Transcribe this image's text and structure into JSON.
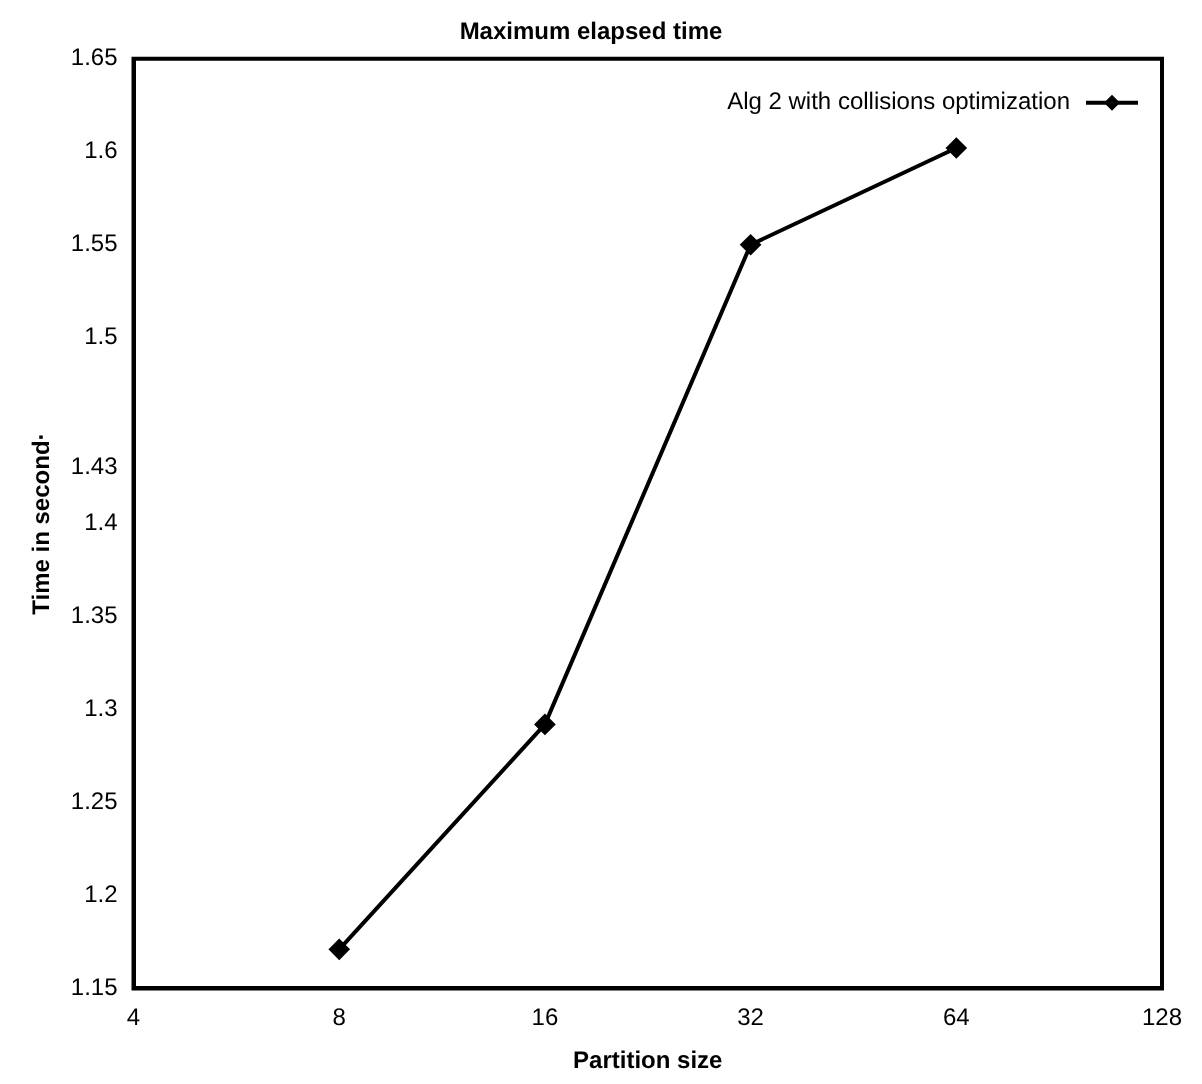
{
  "chart_data": {
    "type": "line",
    "title": "Maximum elapsed time",
    "xlabel": "Partition size",
    "ylabel": "Time in second·",
    "x": [
      8,
      16,
      32,
      64
    ],
    "series": [
      {
        "name": "Alg 2 with collisions optimization",
        "color": "#000000",
        "values": [
          1.171,
          1.292,
          1.55,
          1.602
        ]
      }
    ],
    "log": "x",
    "xlim": [
      4,
      128
    ],
    "xticks": [
      4,
      8,
      16,
      32,
      64,
      128
    ],
    "ylim": [
      1.15,
      1.65
    ],
    "yticks": [
      1.15,
      1.2,
      1.25,
      1.3,
      1.35,
      1.4,
      1.43,
      1.5,
      1.55,
      1.6,
      1.65
    ],
    "grid": false,
    "legend": "top right",
    "marker": "diamond",
    "line_style": "solid"
  }
}
